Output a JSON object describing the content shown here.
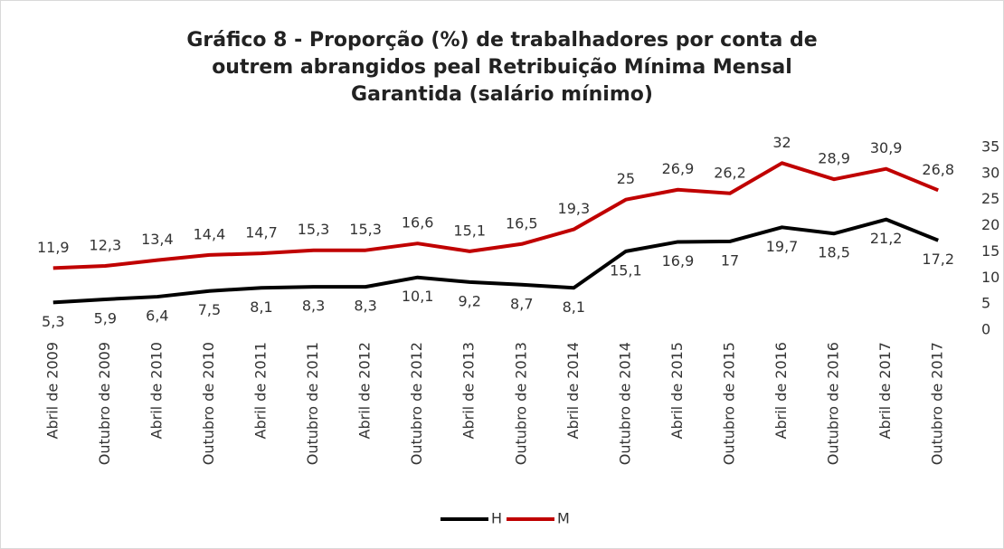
{
  "chart_data": {
    "type": "line",
    "title": "Gráfico 8 - Proporção (%) de trabalhadores por conta de outrem abrangidos peal Retribuição Mínima Mensal Garantida (salário mínimo)",
    "categories": [
      "Abril de 2009",
      "Outubro de 2009",
      "Abril de 2010",
      "Outubro de 2010",
      "Abril de 2011",
      "Outubro de 2011",
      "Abril de 2012",
      "Outubro de 2012",
      "Abril de 2013",
      "Outubro de 2013",
      "Abril de 2014",
      "Outubro de 2014",
      "Abril de 2015",
      "Outubro de 2015",
      "Abril de 2016",
      "Outubro de 2016",
      "Abril de 2017",
      "Outubro de 2017"
    ],
    "series": [
      {
        "name": "H",
        "color": "#000000",
        "values": [
          5.3,
          5.9,
          6.4,
          7.5,
          8.1,
          8.3,
          8.3,
          10.1,
          9.2,
          8.7,
          8.1,
          15.1,
          16.9,
          17,
          19.7,
          18.5,
          21.2,
          17.2
        ],
        "value_labels": [
          "5,3",
          "5,9",
          "6,4",
          "7,5",
          "8,1",
          "8,3",
          "8,3",
          "10,1",
          "9,2",
          "8,7",
          "8,1",
          "15,1",
          "16,9",
          "17",
          "19,7",
          "18,5",
          "21,2",
          "17,2"
        ]
      },
      {
        "name": "M",
        "color": "#c00000",
        "values": [
          11.9,
          12.3,
          13.4,
          14.4,
          14.7,
          15.3,
          15.3,
          16.6,
          15.1,
          16.5,
          19.3,
          25,
          26.9,
          26.2,
          32,
          28.9,
          30.9,
          26.8
        ],
        "value_labels": [
          "11,9",
          "12,3",
          "13,4",
          "14,4",
          "14,7",
          "15,3",
          "15,3",
          "16,6",
          "15,1",
          "16,5",
          "19,3",
          "25",
          "26,9",
          "26,2",
          "32",
          "28,9",
          "30,9",
          "26,8"
        ]
      }
    ],
    "ylim": [
      0,
      35
    ],
    "yticks": [
      0,
      5,
      10,
      15,
      20,
      25,
      30,
      35
    ],
    "legend": "bottom"
  }
}
